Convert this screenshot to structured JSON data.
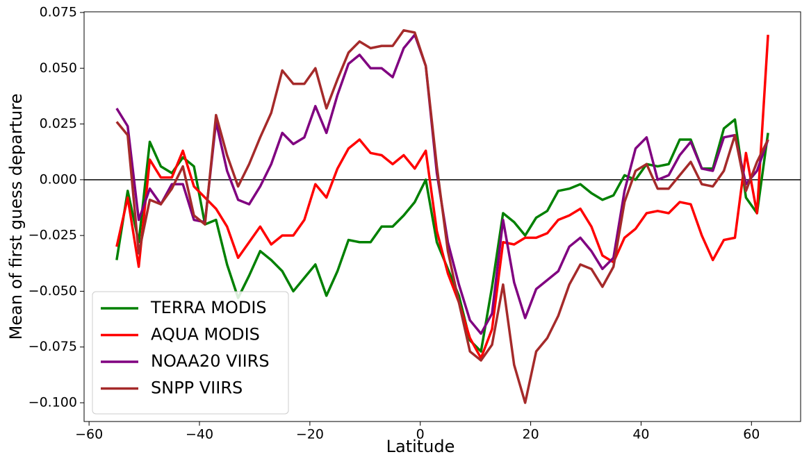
{
  "chart_data": {
    "type": "line",
    "xlabel": "Latitude",
    "ylabel": "Mean of first guess departure",
    "x": [
      -55,
      -53,
      -51,
      -49,
      -47,
      -45,
      -43,
      -41,
      -39,
      -37,
      -35,
      -33,
      -31,
      -29,
      -27,
      -25,
      -23,
      -21,
      -19,
      -17,
      -15,
      -13,
      -11,
      -9,
      -7,
      -5,
      -3,
      -1,
      1,
      3,
      5,
      7,
      9,
      11,
      13,
      15,
      17,
      19,
      21,
      23,
      25,
      27,
      29,
      31,
      33,
      35,
      37,
      39,
      41,
      43,
      45,
      47,
      49,
      51,
      53,
      55,
      57,
      59,
      61,
      63
    ],
    "series": [
      {
        "name": "TERRA MODIS",
        "color": "#008000",
        "values": [
          -0.036,
          -0.005,
          -0.028,
          0.017,
          0.006,
          0.003,
          0.01,
          0.006,
          -0.02,
          -0.018,
          -0.038,
          -0.053,
          -0.043,
          -0.032,
          -0.036,
          -0.041,
          -0.05,
          -0.044,
          -0.038,
          -0.052,
          -0.041,
          -0.027,
          -0.028,
          -0.028,
          -0.021,
          -0.021,
          -0.016,
          -0.01,
          0.0,
          -0.028,
          -0.04,
          -0.052,
          -0.072,
          -0.077,
          -0.048,
          -0.015,
          -0.019,
          -0.025,
          -0.017,
          -0.014,
          -0.005,
          -0.004,
          -0.002,
          -0.006,
          -0.009,
          -0.007,
          0.002,
          0.0,
          0.007,
          0.006,
          0.007,
          0.018,
          0.018,
          0.005,
          0.005,
          0.023,
          0.027,
          -0.008,
          -0.015,
          0.021
        ]
      },
      {
        "name": "AQUA MODIS",
        "color": "#ff0000",
        "values": [
          -0.03,
          -0.008,
          -0.039,
          0.009,
          0.001,
          0.001,
          0.013,
          -0.003,
          -0.008,
          -0.013,
          -0.021,
          -0.035,
          -0.028,
          -0.021,
          -0.029,
          -0.025,
          -0.025,
          -0.018,
          -0.002,
          -0.008,
          0.005,
          0.014,
          0.018,
          0.012,
          0.011,
          0.007,
          0.011,
          0.005,
          0.013,
          -0.023,
          -0.042,
          -0.055,
          -0.071,
          -0.08,
          -0.067,
          -0.028,
          -0.029,
          -0.026,
          -0.026,
          -0.024,
          -0.018,
          -0.016,
          -0.013,
          -0.021,
          -0.034,
          -0.037,
          -0.026,
          -0.022,
          -0.015,
          -0.014,
          -0.015,
          -0.01,
          -0.011,
          -0.025,
          -0.036,
          -0.027,
          -0.026,
          0.012,
          -0.015,
          0.065
        ]
      },
      {
        "name": "NOAA20 VIIRS",
        "color": "#800080",
        "values": [
          0.032,
          0.024,
          -0.018,
          -0.004,
          -0.011,
          -0.002,
          -0.002,
          -0.018,
          -0.019,
          0.026,
          0.004,
          -0.009,
          -0.011,
          -0.003,
          0.007,
          0.021,
          0.016,
          0.019,
          0.033,
          0.021,
          0.038,
          0.052,
          0.056,
          0.05,
          0.05,
          0.046,
          0.059,
          0.065,
          0.051,
          0.003,
          -0.028,
          -0.047,
          -0.063,
          -0.069,
          -0.06,
          -0.018,
          -0.046,
          -0.062,
          -0.049,
          -0.045,
          -0.041,
          -0.03,
          -0.026,
          -0.032,
          -0.04,
          -0.035,
          -0.005,
          0.014,
          0.019,
          0.0,
          0.002,
          0.011,
          0.017,
          0.005,
          0.004,
          0.019,
          0.02,
          -0.002,
          0.004,
          0.018
        ]
      },
      {
        "name": "SNPP VIIRS",
        "color": "#a52a2a",
        "values": [
          0.026,
          0.02,
          -0.033,
          -0.009,
          -0.011,
          -0.004,
          0.006,
          -0.016,
          -0.02,
          0.029,
          0.011,
          -0.003,
          0.007,
          0.019,
          0.03,
          0.049,
          0.043,
          0.043,
          0.05,
          0.032,
          0.045,
          0.057,
          0.062,
          0.059,
          0.06,
          0.06,
          0.067,
          0.066,
          0.051,
          0.006,
          -0.032,
          -0.055,
          -0.077,
          -0.081,
          -0.074,
          -0.047,
          -0.083,
          -0.1,
          -0.077,
          -0.071,
          -0.061,
          -0.047,
          -0.038,
          -0.04,
          -0.048,
          -0.039,
          -0.01,
          0.004,
          0.007,
          -0.004,
          -0.004,
          0.002,
          0.008,
          -0.002,
          -0.003,
          0.004,
          0.02,
          -0.005,
          0.008,
          0.018
        ]
      }
    ],
    "reference_line": 0,
    "xlim": [
      -60.9,
      68.9
    ],
    "ylim": [
      -0.1084,
      0.0753
    ],
    "xticks": [
      {
        "value": -60,
        "label": "−60"
      },
      {
        "value": -40,
        "label": "−40"
      },
      {
        "value": -20,
        "label": "−20"
      },
      0,
      20,
      40,
      60
    ],
    "yticks": [
      {
        "value": -0.1,
        "label": "−0.100"
      },
      {
        "value": -0.075,
        "label": "−0.075"
      },
      {
        "value": -0.05,
        "label": "−0.050"
      },
      {
        "value": -0.025,
        "label": "−0.025"
      },
      {
        "value": 0,
        "label": "0.000"
      },
      {
        "value": 0.025,
        "label": "0.025"
      },
      {
        "value": 0.05,
        "label": "0.050"
      },
      {
        "value": 0.075,
        "label": "0.075"
      }
    ],
    "legend": "lower left"
  }
}
